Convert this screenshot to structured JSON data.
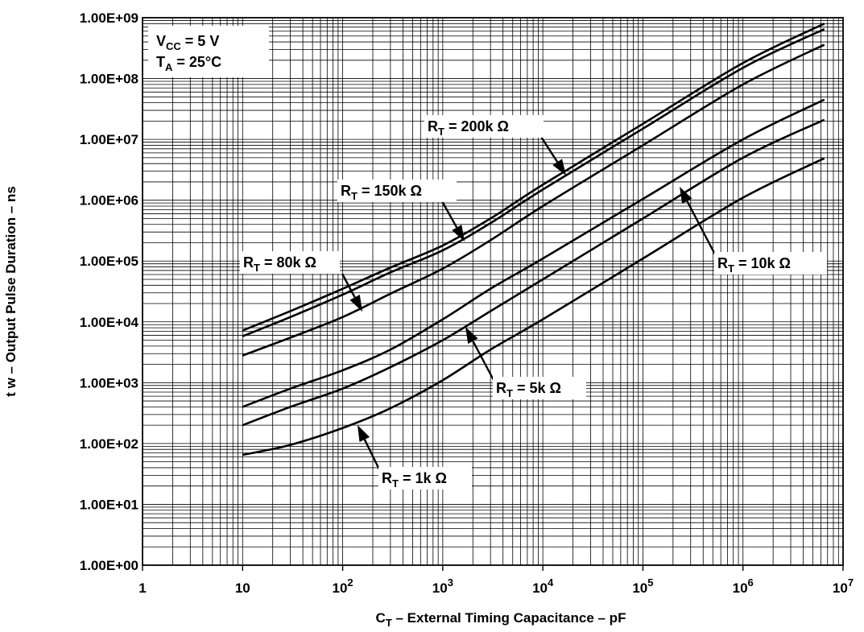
{
  "chart_data": {
    "type": "line",
    "x_scale": "log",
    "y_scale": "log",
    "xlabel": {
      "main": "C",
      "sub": "T",
      "rest": " – External Timing Capacitance – pF"
    },
    "ylabel": "t w – Output Pulse Duration – ns",
    "xlim": [
      1,
      10000000
    ],
    "ylim": [
      1,
      1000000000
    ],
    "x_ticks": [
      {
        "v": 1,
        "base": "1",
        "exp": ""
      },
      {
        "v": 10,
        "base": "10",
        "exp": ""
      },
      {
        "v": 100,
        "base": "10",
        "exp": "2"
      },
      {
        "v": 1000,
        "base": "10",
        "exp": "3"
      },
      {
        "v": 10000,
        "base": "10",
        "exp": "4"
      },
      {
        "v": 100000,
        "base": "10",
        "exp": "5"
      },
      {
        "v": 1000000,
        "base": "10",
        "exp": "6"
      },
      {
        "v": 10000000,
        "base": "10",
        "exp": "7"
      }
    ],
    "y_ticks": [
      {
        "v": 1,
        "label": "1.00E+00"
      },
      {
        "v": 10,
        "label": "1.00E+01"
      },
      {
        "v": 100,
        "label": "1.00E+02"
      },
      {
        "v": 1000,
        "label": "1.00E+03"
      },
      {
        "v": 10000,
        "label": "1.00E+04"
      },
      {
        "v": 100000,
        "label": "1.00E+05"
      },
      {
        "v": 1000000,
        "label": "1.00E+06"
      },
      {
        "v": 10000000,
        "label": "1.00E+07"
      },
      {
        "v": 100000000,
        "label": "1.00E+08"
      },
      {
        "v": 1000000000,
        "label": "1.00E+09"
      }
    ],
    "grid": true,
    "conditions": [
      {
        "main": "V",
        "sub": "CC",
        "rest": " = 5 V"
      },
      {
        "main": "T",
        "sub": "A",
        "rest": " = 25°C"
      }
    ],
    "series": [
      {
        "name": {
          "main": "R",
          "sub": "T",
          "rest": " = 200k Ω"
        },
        "x": [
          10,
          30,
          100,
          300,
          1000,
          3000,
          10000,
          100000,
          1000000,
          6500000
        ],
        "y": [
          7200,
          15000,
          35000,
          78000,
          180000,
          500000,
          1800000,
          18000000,
          180000000,
          800000000
        ]
      },
      {
        "name": {
          "main": "R",
          "sub": "T",
          "rest": " = 150k Ω"
        },
        "x": [
          10,
          30,
          100,
          300,
          1000,
          3000,
          10000,
          100000,
          1000000,
          6500000
        ],
        "y": [
          5800,
          12000,
          28000,
          65000,
          150000,
          420000,
          1500000,
          15000000,
          150000000,
          650000000
        ]
      },
      {
        "name": {
          "main": "R",
          "sub": "T",
          "rest": " = 80k Ω"
        },
        "x": [
          10,
          30,
          100,
          300,
          1000,
          3000,
          10000,
          100000,
          1000000,
          6500000
        ],
        "y": [
          2800,
          5500,
          12000,
          29000,
          75000,
          220000,
          800000,
          8000000,
          80000000,
          360000000
        ]
      },
      {
        "name": {
          "main": "R",
          "sub": "T",
          "rest": " = 10k Ω"
        },
        "x": [
          10,
          30,
          100,
          300,
          1000,
          3000,
          10000,
          100000,
          1000000,
          6500000
        ],
        "y": [
          400,
          800,
          1600,
          3500,
          11000,
          35000,
          110000,
          1050000,
          10000000,
          45000000
        ]
      },
      {
        "name": {
          "main": "R",
          "sub": "T",
          "rest": " = 5k Ω"
        },
        "x": [
          10,
          30,
          100,
          300,
          1000,
          3000,
          10000,
          100000,
          1000000,
          6500000
        ],
        "y": [
          200,
          400,
          800,
          1800,
          5000,
          15000,
          50000,
          500000,
          5000000,
          21000000
        ]
      },
      {
        "name": {
          "main": "R",
          "sub": "T",
          "rest": " = 1k Ω"
        },
        "x": [
          10,
          30,
          100,
          300,
          1000,
          3000,
          10000,
          100000,
          1000000,
          6500000
        ],
        "y": [
          65,
          95,
          180,
          380,
          1100,
          3500,
          11000,
          110000,
          1100000,
          4900000
        ]
      }
    ]
  }
}
